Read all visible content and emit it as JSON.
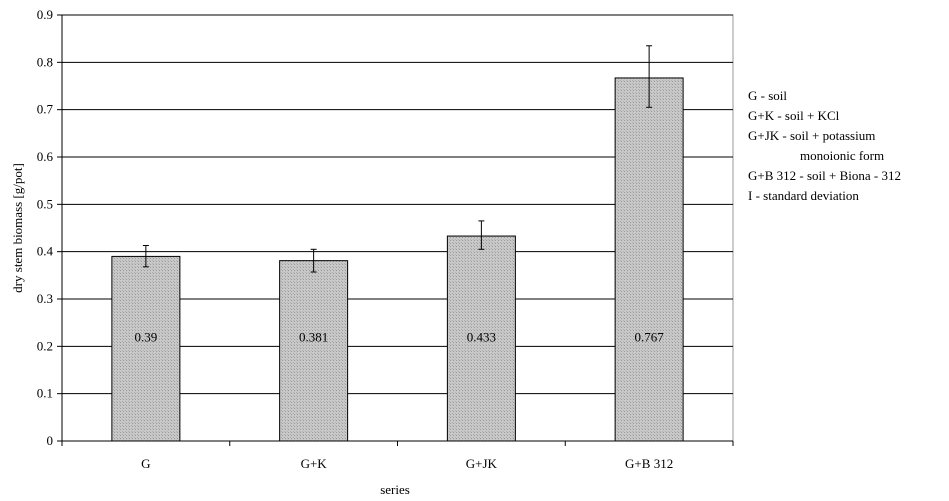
{
  "chart_data": {
    "type": "bar",
    "categories": [
      "G",
      "G+K",
      "G+JK",
      "G+B 312"
    ],
    "values": [
      0.39,
      0.381,
      0.433,
      0.767
    ],
    "value_labels": [
      "0.39",
      "0.381",
      "0.433",
      "0.767"
    ],
    "error_low": [
      0.368,
      0.357,
      0.405,
      0.705
    ],
    "error_high": [
      0.413,
      0.405,
      0.465,
      0.835
    ],
    "xlabel": "series",
    "ylabel": "dry stem biomass  [g/pot]",
    "ylim": [
      0,
      0.9
    ],
    "yticks": [
      "0",
      "0.1",
      "0.2",
      "0.3",
      "0.4",
      "0.5",
      "0.6",
      "0.7",
      "0.8",
      "0.9"
    ],
    "grid": true,
    "legend_position": "right",
    "bar_color": "#c8c8c8"
  },
  "legend": {
    "lines": [
      "G - soil",
      "G+K - soil + KCl",
      "G+JK - soil + potassium",
      "monoionic form",
      "G+B 312 - soil + Biona - 312",
      "I - standard deviation"
    ]
  }
}
